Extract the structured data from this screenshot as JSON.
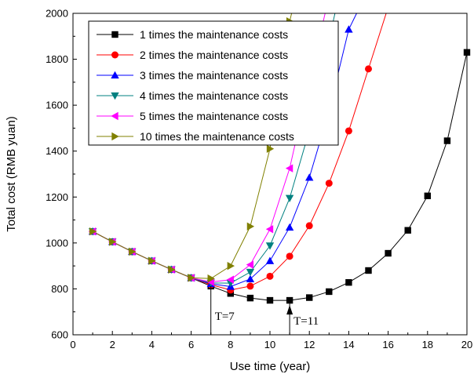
{
  "chart_data": {
    "type": "line",
    "title": "",
    "xlabel": "Use time (year)",
    "ylabel": "Total cost (RMB yuan)",
    "xlim": [
      0,
      20
    ],
    "ylim": [
      600,
      2000
    ],
    "xticks": [
      0,
      2,
      4,
      6,
      8,
      10,
      12,
      14,
      16,
      18,
      20
    ],
    "yticks": [
      600,
      800,
      1000,
      1200,
      1400,
      1600,
      1800,
      2000
    ],
    "legend_position": "top-left",
    "series": [
      {
        "name": "1 times the maintenance costs",
        "color": "#000000",
        "marker": "square",
        "x": [
          1,
          2,
          3,
          4,
          5,
          6,
          7,
          8,
          9,
          10,
          11,
          12,
          13,
          14,
          15,
          16,
          17,
          18,
          19,
          20
        ],
        "y": [
          1050,
          1005,
          962,
          922,
          884,
          848,
          812,
          780,
          760,
          750,
          750,
          762,
          788,
          828,
          880,
          955,
          1055,
          1205,
          1445,
          1830
        ]
      },
      {
        "name": "2 times the maintenance costs",
        "color": "#ff0000",
        "marker": "circle",
        "x": [
          1,
          2,
          3,
          4,
          5,
          6,
          7,
          8,
          9,
          10,
          11,
          12,
          13,
          14,
          15,
          15.9
        ],
        "y": [
          1050,
          1005,
          962,
          922,
          884,
          848,
          818,
          795,
          812,
          855,
          942,
          1075,
          1260,
          1488,
          1758,
          2000
        ]
      },
      {
        "name": "3 times the maintenance costs",
        "color": "#0000ff",
        "marker": "triangle-up",
        "x": [
          1,
          2,
          3,
          4,
          5,
          6,
          7,
          8,
          9,
          10,
          11,
          12,
          13,
          14,
          14.4
        ],
        "y": [
          1050,
          1005,
          962,
          922,
          884,
          848,
          822,
          810,
          843,
          922,
          1068,
          1285,
          1575,
          1930,
          2000
        ]
      },
      {
        "name": "4 times the maintenance costs",
        "color": "#008080",
        "marker": "triangle-down",
        "x": [
          1,
          2,
          3,
          4,
          5,
          6,
          7,
          8,
          9,
          10,
          11,
          12,
          13,
          13.3
        ],
        "y": [
          1050,
          1005,
          962,
          922,
          884,
          848,
          826,
          825,
          873,
          988,
          1195,
          1490,
          1885,
          2000
        ]
      },
      {
        "name": "5 times the maintenance costs",
        "color": "#ff00ff",
        "marker": "triangle-left",
        "x": [
          1,
          2,
          3,
          4,
          5,
          6,
          7,
          8,
          9,
          10,
          11,
          12,
          12.8
        ],
        "y": [
          1050,
          1005,
          962,
          922,
          884,
          848,
          830,
          840,
          905,
          1060,
          1325,
          1705,
          2000
        ]
      },
      {
        "name": "10 times the maintenance costs",
        "color": "#808000",
        "marker": "triangle-right",
        "x": [
          1,
          2,
          3,
          4,
          5,
          6,
          7,
          8,
          9,
          10,
          11,
          11.1
        ],
        "y": [
          1050,
          1005,
          962,
          922,
          884,
          848,
          845,
          900,
          1072,
          1410,
          1965,
          2000
        ]
      }
    ],
    "annotations": [
      {
        "text": "T=7",
        "x": 7,
        "y": 812
      },
      {
        "text": "T=11",
        "x": 11,
        "y": 750
      }
    ]
  }
}
